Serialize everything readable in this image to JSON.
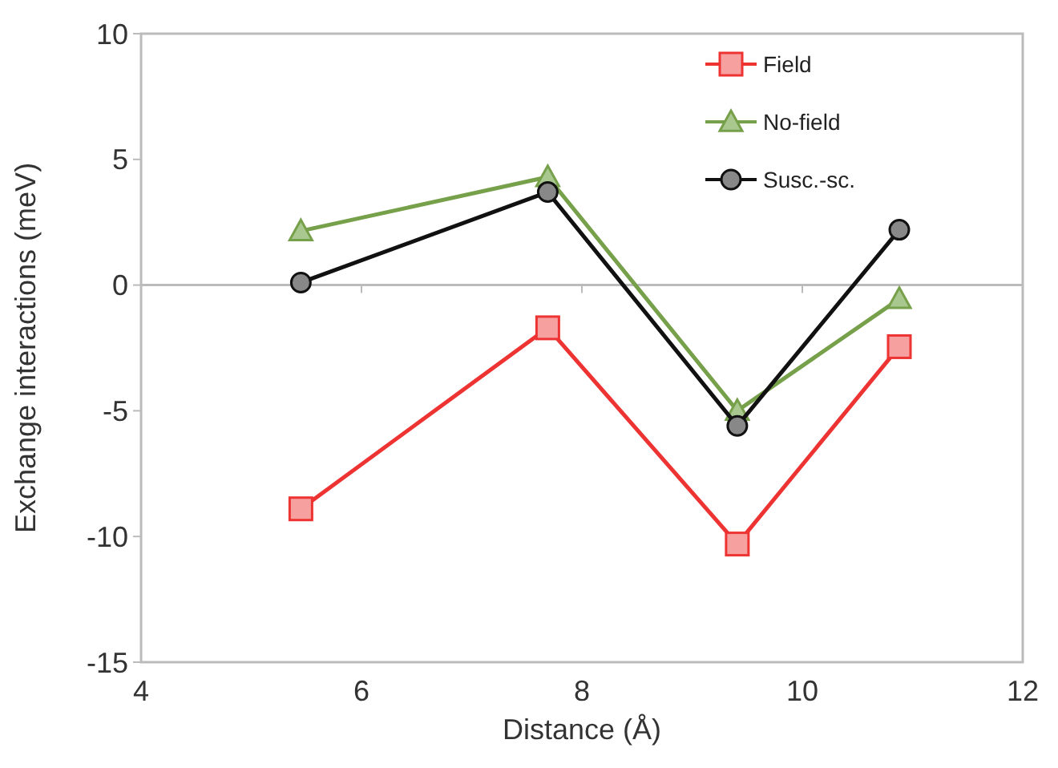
{
  "chart_data": {
    "type": "line",
    "xlabel": "Distance (Å)",
    "ylabel": "Exchange interactions (meV)",
    "x": [
      5.45,
      7.69,
      9.41,
      10.88
    ],
    "series": [
      {
        "name": "Field",
        "color": "#ee3333",
        "marker": "square",
        "values": [
          -8.9,
          -1.7,
          -10.3,
          -2.45
        ]
      },
      {
        "name": "No-field",
        "color": "#77a04a",
        "marker": "triangle",
        "values": [
          2.15,
          4.3,
          -5.0,
          -0.55
        ]
      },
      {
        "name": "Susc.-sc.",
        "color": "#111111",
        "marker": "circle",
        "values": [
          0.1,
          3.7,
          -5.6,
          2.2
        ]
      }
    ],
    "xlim": [
      4,
      12
    ],
    "xticks": [
      4,
      6,
      8,
      10,
      12
    ],
    "ylim": [
      -15,
      10
    ],
    "yticks": [
      -15,
      -10,
      -5,
      0,
      5,
      10
    ],
    "legend": "top right"
  }
}
